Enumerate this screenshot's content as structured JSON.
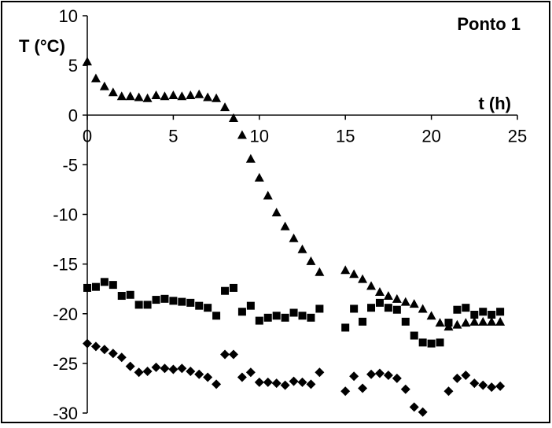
{
  "chart_data": {
    "type": "scatter",
    "title": "Ponto 1",
    "xlabel": "t (h)",
    "ylabel": "T (°C)",
    "xlim": [
      0,
      25
    ],
    "ylim": [
      -30,
      10
    ],
    "x_ticks": [
      "0",
      "5",
      "10",
      "15",
      "20",
      "25"
    ],
    "y_ticks": [
      "10",
      "5",
      "0",
      "-5",
      "-10",
      "-15",
      "-20",
      "-25",
      "-30"
    ],
    "grid": false,
    "legend": "none",
    "series": [
      {
        "marker": "triangle",
        "color": "#000000",
        "points": [
          [
            0,
            5.4
          ],
          [
            0.5,
            3.7
          ],
          [
            1,
            2.9
          ],
          [
            1.5,
            2.3
          ],
          [
            2,
            1.9
          ],
          [
            2.5,
            1.9
          ],
          [
            3,
            1.8
          ],
          [
            3.5,
            1.7
          ],
          [
            4,
            2.0
          ],
          [
            4.5,
            1.9
          ],
          [
            5,
            2.0
          ],
          [
            5.5,
            1.9
          ],
          [
            6,
            2.0
          ],
          [
            6.5,
            2.1
          ],
          [
            7,
            1.8
          ],
          [
            7.5,
            1.7
          ],
          [
            8,
            0.8
          ],
          [
            8.5,
            -0.3
          ],
          [
            9,
            -2.0
          ],
          [
            9.5,
            -4.4
          ],
          [
            10,
            -6.3
          ],
          [
            10.5,
            -8.1
          ],
          [
            11,
            -9.8
          ],
          [
            11.5,
            -11.2
          ],
          [
            12,
            -12.4
          ],
          [
            12.5,
            -13.5
          ],
          [
            13,
            -14.7
          ],
          [
            13.5,
            -15.8
          ],
          [
            15,
            -15.6
          ],
          [
            15.5,
            -16.0
          ],
          [
            16,
            -16.5
          ],
          [
            16.5,
            -17.2
          ],
          [
            17,
            -17.8
          ],
          [
            17.5,
            -18.2
          ],
          [
            18,
            -18.5
          ],
          [
            18.5,
            -18.8
          ],
          [
            19,
            -19.0
          ],
          [
            19.5,
            -19.5
          ],
          [
            20,
            -20.2
          ],
          [
            20.5,
            -20.9
          ],
          [
            21,
            -21.3
          ],
          [
            21.5,
            -21.1
          ],
          [
            22,
            -20.9
          ],
          [
            22.5,
            -20.8
          ],
          [
            23,
            -20.8
          ],
          [
            23.5,
            -20.8
          ],
          [
            24,
            -20.8
          ]
        ]
      },
      {
        "marker": "square",
        "color": "#000000",
        "points": [
          [
            0,
            -17.4
          ],
          [
            0.5,
            -17.3
          ],
          [
            1,
            -16.8
          ],
          [
            1.5,
            -17.1
          ],
          [
            2,
            -18.2
          ],
          [
            2.5,
            -18.1
          ],
          [
            3,
            -19.1
          ],
          [
            3.5,
            -19.1
          ],
          [
            4,
            -18.6
          ],
          [
            4.5,
            -18.5
          ],
          [
            5,
            -18.7
          ],
          [
            5.5,
            -18.8
          ],
          [
            6,
            -18.9
          ],
          [
            6.5,
            -19.2
          ],
          [
            7,
            -19.4
          ],
          [
            7.5,
            -20.2
          ],
          [
            8,
            -17.7
          ],
          [
            8.5,
            -17.4
          ],
          [
            9,
            -19.8
          ],
          [
            9.5,
            -19.2
          ],
          [
            10,
            -20.7
          ],
          [
            10.5,
            -20.4
          ],
          [
            11,
            -20.2
          ],
          [
            11.5,
            -20.4
          ],
          [
            12,
            -19.9
          ],
          [
            12.5,
            -20.2
          ],
          [
            13,
            -20.4
          ],
          [
            13.5,
            -19.5
          ],
          [
            15,
            -21.4
          ],
          [
            15.5,
            -19.5
          ],
          [
            16,
            -20.8
          ],
          [
            16.5,
            -19.4
          ],
          [
            17,
            -18.9
          ],
          [
            17.5,
            -19.4
          ],
          [
            18,
            -19.6
          ],
          [
            18.5,
            -20.8
          ],
          [
            19,
            -22.2
          ],
          [
            19.5,
            -22.9
          ],
          [
            20,
            -23.0
          ],
          [
            20.5,
            -22.9
          ],
          [
            21,
            -20.9
          ],
          [
            21.5,
            -19.6
          ],
          [
            22,
            -19.4
          ],
          [
            22.5,
            -20.1
          ],
          [
            23,
            -19.8
          ],
          [
            23.5,
            -20.1
          ],
          [
            24,
            -19.8
          ]
        ]
      },
      {
        "marker": "diamond",
        "color": "#000000",
        "points": [
          [
            0,
            -23.0
          ],
          [
            0.5,
            -23.3
          ],
          [
            1,
            -23.6
          ],
          [
            1.5,
            -24.0
          ],
          [
            2,
            -24.4
          ],
          [
            2.5,
            -25.3
          ],
          [
            3,
            -25.9
          ],
          [
            3.5,
            -25.8
          ],
          [
            4,
            -25.4
          ],
          [
            4.5,
            -25.5
          ],
          [
            5,
            -25.6
          ],
          [
            5.5,
            -25.5
          ],
          [
            6,
            -25.8
          ],
          [
            6.5,
            -26.1
          ],
          [
            7,
            -26.4
          ],
          [
            7.5,
            -27.1
          ],
          [
            8,
            -24.1
          ],
          [
            8.5,
            -24.1
          ],
          [
            9,
            -26.4
          ],
          [
            9.5,
            -25.9
          ],
          [
            10,
            -26.9
          ],
          [
            10.5,
            -26.9
          ],
          [
            11,
            -27.0
          ],
          [
            11.5,
            -27.2
          ],
          [
            12,
            -26.8
          ],
          [
            12.5,
            -26.9
          ],
          [
            13,
            -27.1
          ],
          [
            13.5,
            -25.9
          ],
          [
            15,
            -27.8
          ],
          [
            15.5,
            -26.3
          ],
          [
            16,
            -27.5
          ],
          [
            16.5,
            -26.1
          ],
          [
            17,
            -26.0
          ],
          [
            17.5,
            -26.2
          ],
          [
            18,
            -26.5
          ],
          [
            18.5,
            -27.6
          ],
          [
            19,
            -29.4
          ],
          [
            19.5,
            -29.9
          ],
          [
            21,
            -27.8
          ],
          [
            21.5,
            -26.5
          ],
          [
            22,
            -26.2
          ],
          [
            22.5,
            -27.0
          ],
          [
            23,
            -27.2
          ],
          [
            23.5,
            -27.4
          ],
          [
            24,
            -27.3
          ]
        ]
      }
    ]
  }
}
